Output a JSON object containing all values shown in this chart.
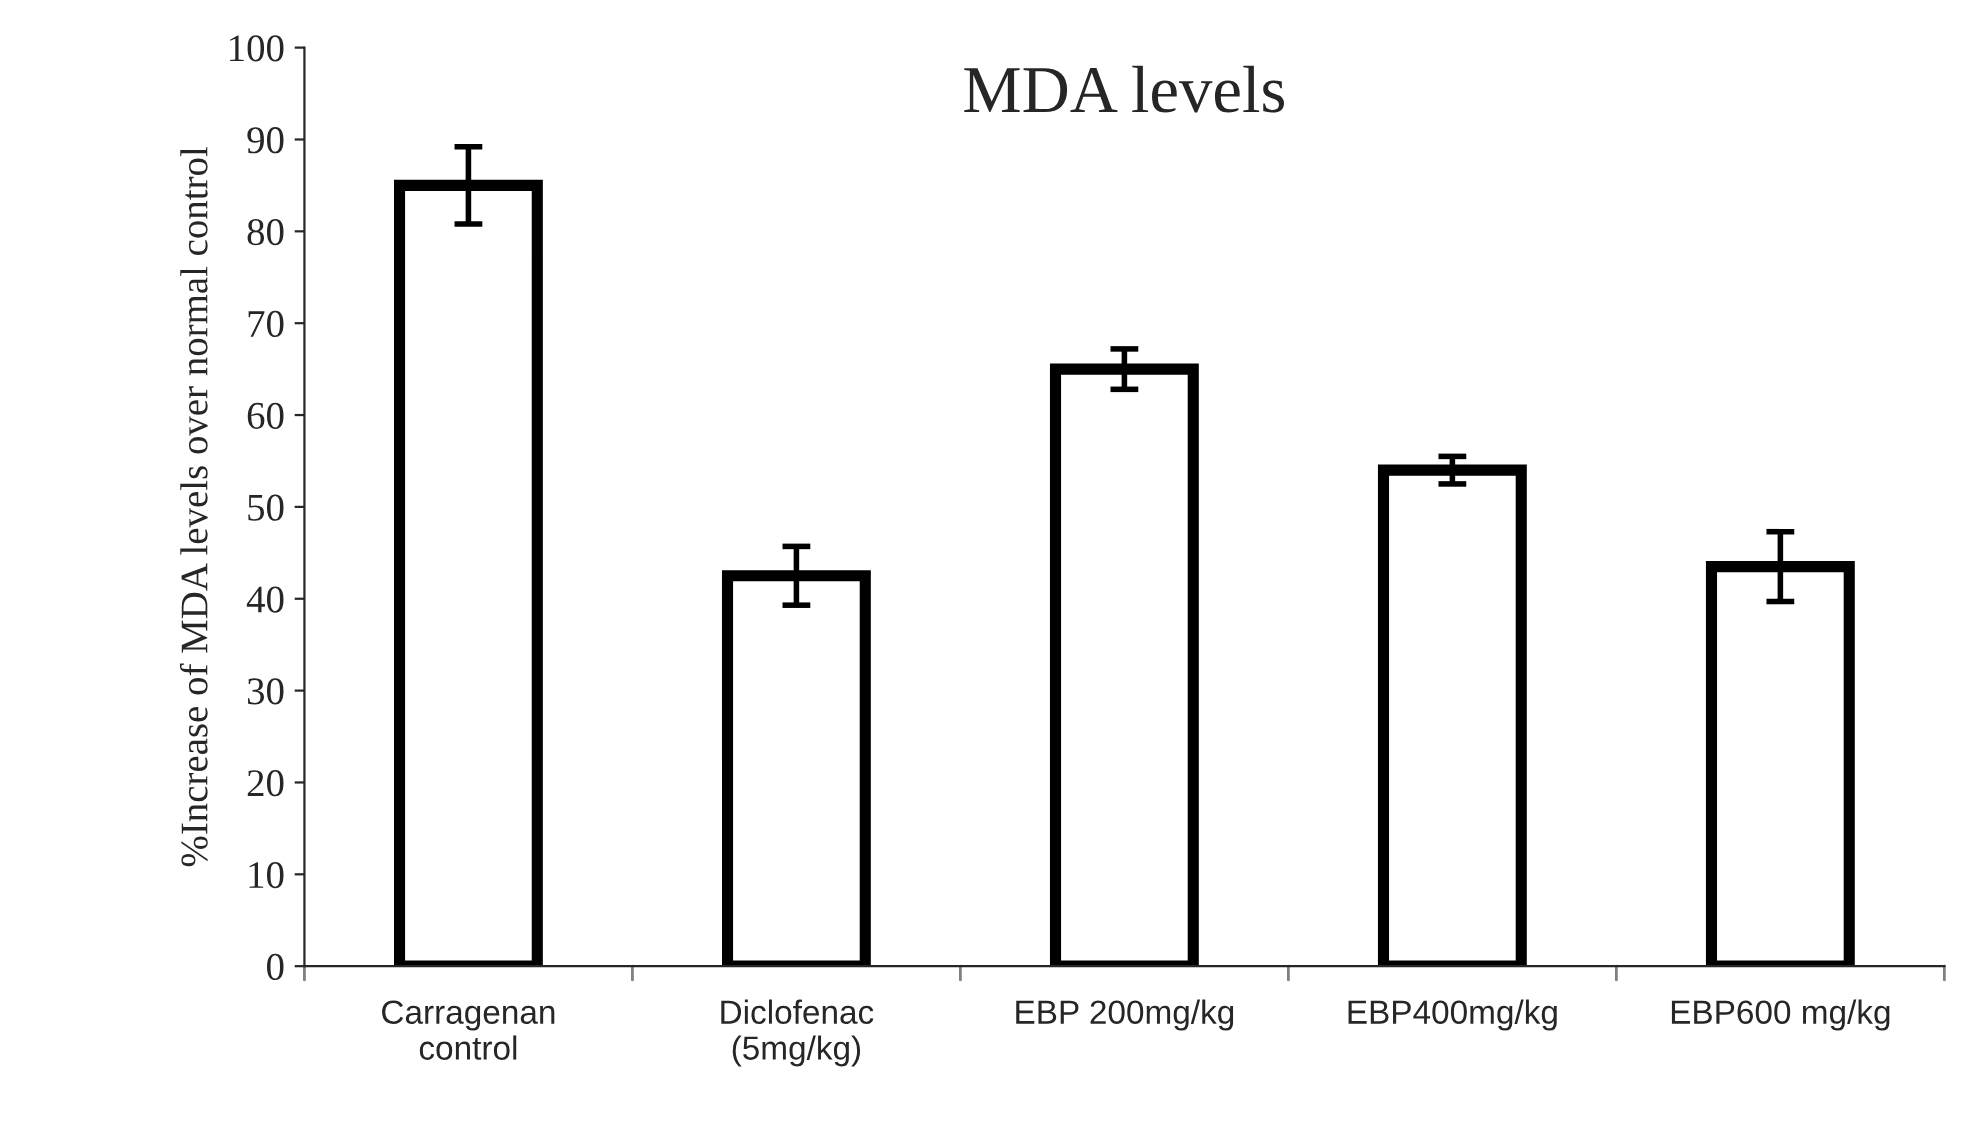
{
  "chart_data": {
    "type": "bar",
    "title": "MDA levels",
    "ylabel": "%Increase of MDA levels over normal control",
    "categories": [
      "Carragenan\ncontrol",
      "Diclofenac\n(5mg/kg)",
      "EBP 200mg/kg",
      "EBP400mg/kg",
      "EBP600 mg/kg"
    ],
    "values": [
      85,
      42.5,
      65,
      54,
      43.5
    ],
    "errors": [
      4.2,
      3.2,
      2.2,
      1.5,
      3.8
    ],
    "color": "#ffffff",
    "ylim": [
      0,
      100
    ],
    "yticks": [
      0,
      10,
      20,
      30,
      40,
      50,
      60,
      70,
      80,
      90,
      100
    ],
    "grid": false
  }
}
